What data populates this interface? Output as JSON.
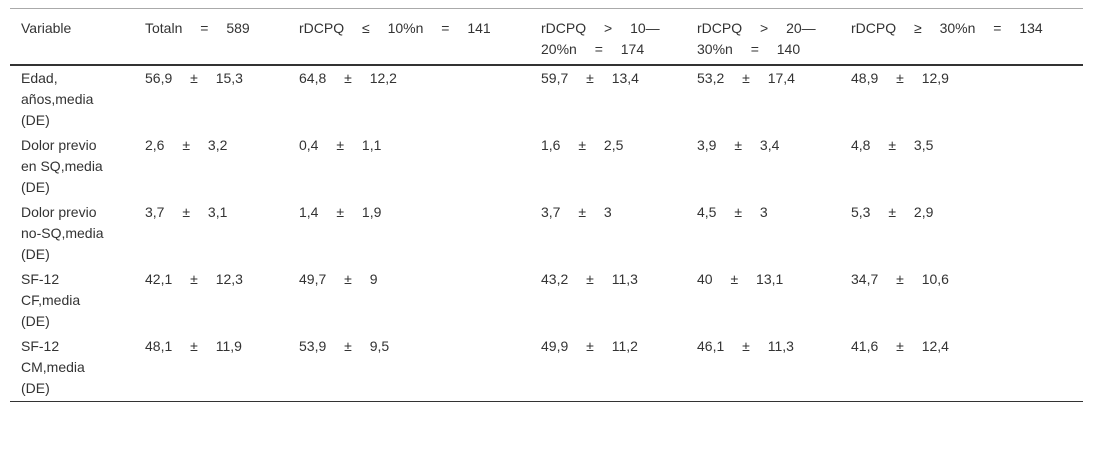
{
  "table": {
    "header": [
      "Variable",
      "Totaln = 589",
      "rDCPQ ≤ 10%n = 141",
      "rDCPQ > 10—20%n = 174",
      "rDCPQ > 20—30%n = 140",
      "rDCPQ ≥ 30%n = 134"
    ],
    "rows": [
      [
        "Edad, años,media (DE)",
        "56,9 ± 15,3",
        "64,8 ± 12,2",
        "59,7 ± 13,4",
        "53,2 ± 17,4",
        "48,9 ± 12,9"
      ],
      [
        "Dolor previo en SQ,media (DE)",
        "2,6 ± 3,2",
        "0,4 ± 1,1",
        "1,6 ± 2,5",
        "3,9 ± 3,4",
        "4,8 ± 3,5"
      ],
      [
        "Dolor previo no-SQ,media (DE)",
        "3,7 ± 3,1",
        "1,4 ± 1,9",
        "3,7 ± 3",
        "4,5 ± 3",
        "5,3 ± 2,9"
      ],
      [
        "SF-12 CF,media (DE)",
        "42,1 ± 12,3",
        "49,7 ± 9",
        "43,2 ± 11,3",
        "40 ± 13,1",
        "34,7 ± 10,6"
      ],
      [
        "SF-12 CM,media (DE)",
        "48,1 ± 11,9",
        "53,9 ± 9,5",
        "49,9 ± 11,2",
        "46,1 ± 11,3",
        "41,6 ± 12,4"
      ]
    ]
  }
}
